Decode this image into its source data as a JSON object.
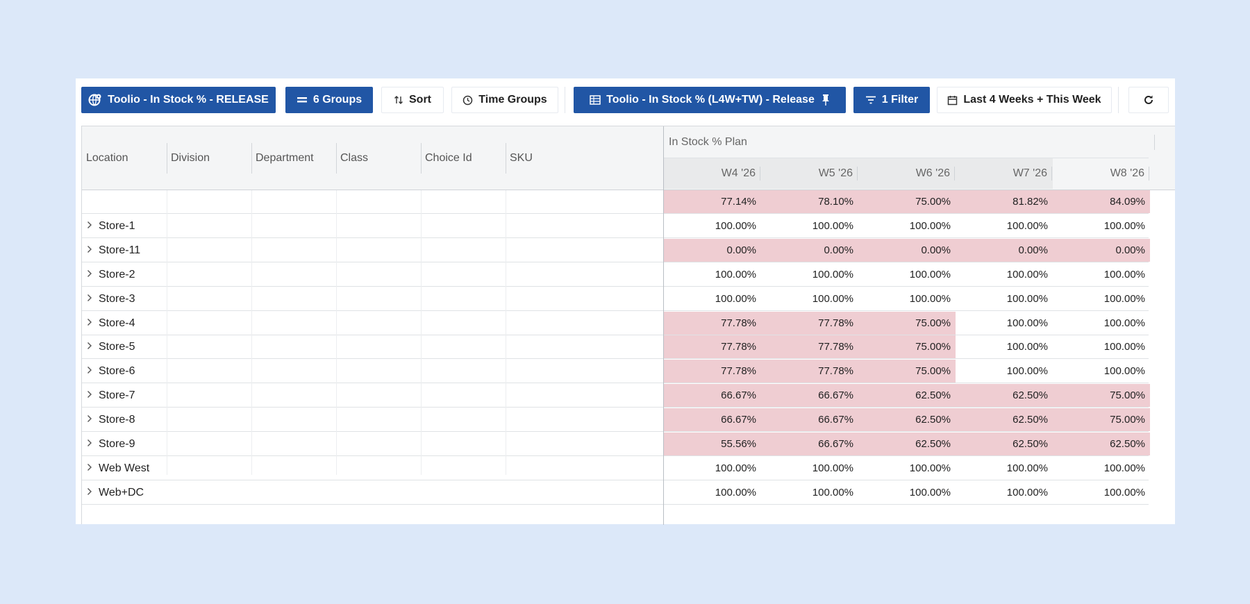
{
  "toolbar": {
    "view_label": "Toolio - In Stock % - RELEASE",
    "groups_label": "6 Groups",
    "sort_label": "Sort",
    "time_groups_label": "Time Groups",
    "plan_label": "Toolio - In Stock % (L4W+TW) - Release",
    "filter_label": "1 Filter",
    "date_range_label": "Last 4 Weeks + This Week"
  },
  "grid": {
    "dimension_headers": [
      "Location",
      "Division",
      "Department",
      "Class",
      "Choice Id",
      "SKU"
    ],
    "measure_title": "In Stock % Plan",
    "weeks": [
      "W4 '26",
      "W5 '26",
      "W6 '26",
      "W7 '26",
      "W8 '26"
    ],
    "total_row": {
      "label": "",
      "values": [
        "77.14%",
        "78.10%",
        "75.00%",
        "81.82%",
        "84.09%"
      ],
      "low": [
        true,
        true,
        true,
        true,
        true
      ]
    },
    "rows": [
      {
        "label": "Store-1",
        "values": [
          "100.00%",
          "100.00%",
          "100.00%",
          "100.00%",
          "100.00%"
        ],
        "low": [
          false,
          false,
          false,
          false,
          false
        ]
      },
      {
        "label": "Store-11",
        "values": [
          "0.00%",
          "0.00%",
          "0.00%",
          "0.00%",
          "0.00%"
        ],
        "low": [
          true,
          true,
          true,
          true,
          true
        ]
      },
      {
        "label": "Store-2",
        "values": [
          "100.00%",
          "100.00%",
          "100.00%",
          "100.00%",
          "100.00%"
        ],
        "low": [
          false,
          false,
          false,
          false,
          false
        ]
      },
      {
        "label": "Store-3",
        "values": [
          "100.00%",
          "100.00%",
          "100.00%",
          "100.00%",
          "100.00%"
        ],
        "low": [
          false,
          false,
          false,
          false,
          false
        ]
      },
      {
        "label": "Store-4",
        "values": [
          "77.78%",
          "77.78%",
          "75.00%",
          "100.00%",
          "100.00%"
        ],
        "low": [
          true,
          true,
          true,
          false,
          false
        ]
      },
      {
        "label": "Store-5",
        "values": [
          "77.78%",
          "77.78%",
          "75.00%",
          "100.00%",
          "100.00%"
        ],
        "low": [
          true,
          true,
          true,
          false,
          false
        ]
      },
      {
        "label": "Store-6",
        "values": [
          "77.78%",
          "77.78%",
          "75.00%",
          "100.00%",
          "100.00%"
        ],
        "low": [
          true,
          true,
          true,
          false,
          false
        ]
      },
      {
        "label": "Store-7",
        "values": [
          "66.67%",
          "66.67%",
          "62.50%",
          "62.50%",
          "75.00%"
        ],
        "low": [
          true,
          true,
          true,
          true,
          true
        ]
      },
      {
        "label": "Store-8",
        "values": [
          "66.67%",
          "66.67%",
          "62.50%",
          "62.50%",
          "75.00%"
        ],
        "low": [
          true,
          true,
          true,
          true,
          true
        ]
      },
      {
        "label": "Store-9",
        "values": [
          "55.56%",
          "66.67%",
          "62.50%",
          "62.50%",
          "62.50%"
        ],
        "low": [
          true,
          true,
          true,
          true,
          true
        ]
      },
      {
        "label": "Web West",
        "values": [
          "100.00%",
          "100.00%",
          "100.00%",
          "100.00%",
          "100.00%"
        ],
        "low": [
          false,
          false,
          false,
          false,
          false
        ]
      },
      {
        "label": "Web+DC",
        "values": [
          "100.00%",
          "100.00%",
          "100.00%",
          "100.00%",
          "100.00%"
        ],
        "low": [
          false,
          false,
          false,
          false,
          false
        ]
      }
    ]
  },
  "colors": {
    "primary": "#2156a5",
    "below_target_cell": "#efcdd2",
    "background": "#dce8f9"
  },
  "icons": {
    "view": "globe-settings-icon",
    "groups": "equals-icon",
    "sort": "sort-arrows-icon",
    "time_groups": "clock-icon",
    "plan": "table-icon",
    "pin": "pin-icon",
    "filter": "filter-icon",
    "date": "calendar-icon",
    "refresh": "refresh-icon",
    "expand": "chevron-right-icon"
  }
}
